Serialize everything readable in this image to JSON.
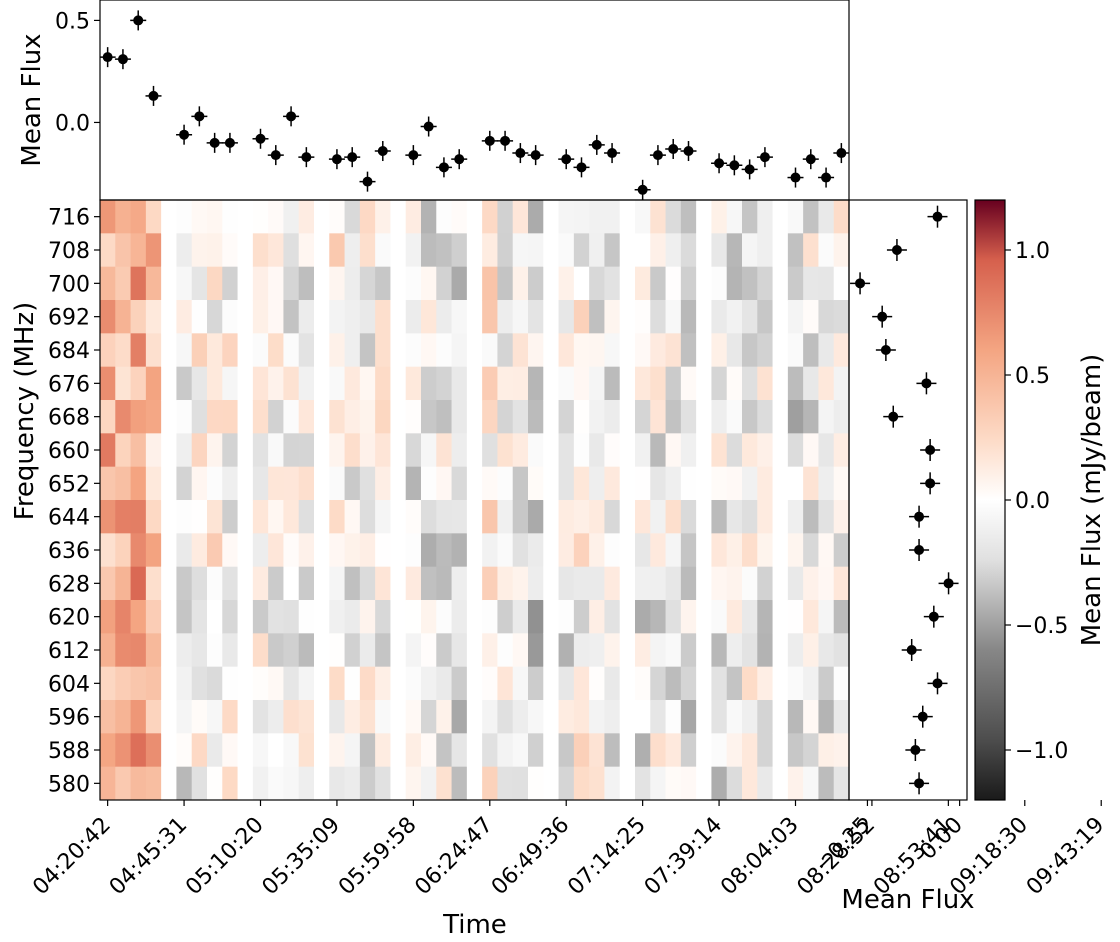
{
  "chart_data": {
    "type": "heatmap",
    "top_panel": {
      "type": "scatter",
      "ylabel": "Mean Flux",
      "ylim": [
        -0.38,
        0.6
      ],
      "yticks": [
        0.0,
        0.5
      ],
      "ytick_labels": [
        "0.0",
        "0.5"
      ],
      "values": [
        0.32,
        0.31,
        0.5,
        0.13,
        -0.06,
        0.03,
        -0.1,
        -0.1,
        -0.08,
        -0.16,
        0.03,
        -0.17,
        -0.18,
        -0.17,
        -0.29,
        -0.14,
        -0.16,
        -0.02,
        -0.22,
        -0.18,
        -0.09,
        -0.09,
        -0.15,
        -0.16,
        -0.18,
        -0.22,
        -0.11,
        -0.15,
        -0.33,
        -0.16,
        -0.13,
        -0.14,
        -0.2,
        -0.21,
        -0.23,
        -0.17,
        -0.27,
        -0.18,
        -0.27,
        -0.15
      ],
      "marker_slots": [
        0,
        1,
        2,
        3,
        5,
        6,
        7,
        8,
        10,
        11,
        12,
        13,
        15,
        16,
        17,
        18,
        20,
        21,
        22,
        23,
        25,
        26,
        27,
        28,
        30,
        31,
        32,
        33,
        35,
        36,
        37,
        38,
        40,
        41,
        42,
        43,
        45,
        46,
        47,
        48
      ]
    },
    "main_panel": {
      "xlabel": "Time",
      "ylabel": "Frequency (MHz)",
      "n_time_slots": 49,
      "xtick_labels": [
        "04:20:42",
        "04:45:31",
        "05:10:20",
        "05:35:09",
        "05:59:58",
        "06:24:47",
        "06:49:36",
        "07:14:25",
        "07:39:14",
        "08:04:03",
        "08:28:52",
        "08:53:41",
        "09:18:30",
        "09:43:19"
      ],
      "frequencies": [
        716,
        708,
        700,
        692,
        684,
        676,
        668,
        660,
        652,
        644,
        636,
        628,
        620,
        612,
        604,
        596,
        588,
        580
      ],
      "column_bias": [
        0.52,
        0.48,
        0.6,
        0.4,
        -0.05,
        -0.18,
        0.04,
        0.04,
        -0.02,
        0.0,
        -0.05,
        -0.04,
        -0.05,
        -0.1,
        -0.06,
        0.07,
        -0.1,
        -0.06,
        -0.04,
        0.0,
        -0.1,
        -0.13,
        -0.1,
        -0.25,
        -0.2,
        0.08,
        -0.08,
        -0.1,
        -0.25,
        -0.13,
        -0.12,
        0.0,
        -0.05,
        -0.15,
        -0.1,
        -0.14,
        -0.1,
        -0.1,
        -0.22,
        -0.2,
        -0.13,
        -0.15,
        -0.08,
        -0.12,
        -0.08,
        -0.2,
        -0.1,
        -0.13,
        -0.08
      ],
      "gap_slots": [
        4,
        9,
        14,
        19,
        24,
        29,
        34,
        39,
        44
      ]
    },
    "right_panel": {
      "type": "scatter",
      "xlabel": "Mean Flux",
      "xlim": [
        -0.3,
        0.02
      ],
      "xticks": [
        -0.25,
        0.0
      ],
      "xtick_labels": [
        "−0.25",
        "0.00"
      ],
      "values": [
        -0.06,
        -0.17,
        -0.27,
        -0.21,
        -0.2,
        -0.09,
        -0.18,
        -0.08,
        -0.08,
        -0.11,
        -0.11,
        -0.03,
        -0.07,
        -0.13,
        -0.06,
        -0.1,
        -0.12,
        -0.11
      ]
    },
    "colorbar": {
      "label": "Mean Flux (mJy/beam)",
      "colormap": "RdGy_r",
      "range": [
        -1.2,
        1.2
      ],
      "ticks": [
        -1.0,
        -0.5,
        0.0,
        0.5,
        1.0
      ],
      "tick_labels": [
        "−1.0",
        "−0.5",
        "0.0",
        "0.5",
        "1.0"
      ]
    }
  },
  "colors": {
    "marker": "#000000",
    "axes": "#000000",
    "background": "#ffffff"
  }
}
